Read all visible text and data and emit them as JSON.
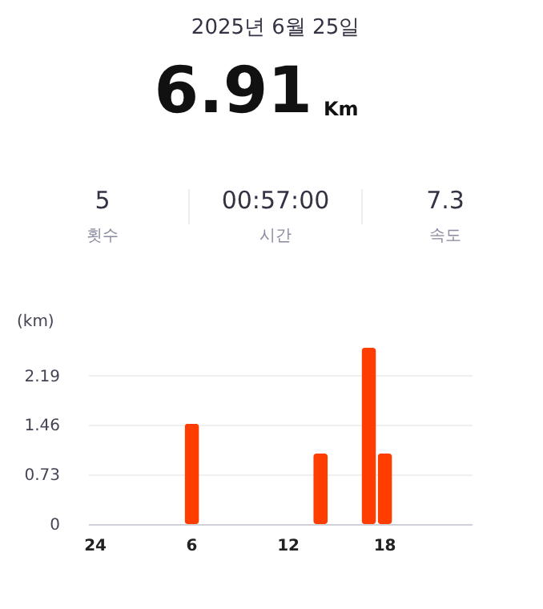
{
  "chart_data": {
    "type": "bar",
    "title": "2025년 6월 25일",
    "annotations": [
      "6.91",
      "Km",
      "5",
      "횟수",
      "00:57:00",
      "시간",
      "7.3",
      "속도"
    ],
    "ylabel": "(km)",
    "categories": [
      "24",
      null,
      null,
      null,
      null,
      null,
      "6",
      null,
      null,
      null,
      null,
      null,
      "12",
      null,
      null,
      null,
      null,
      null,
      "18",
      null,
      null,
      null,
      null,
      null
    ],
    "values": [
      null,
      null,
      null,
      null,
      null,
      null,
      1.48,
      null,
      null,
      null,
      null,
      null,
      null,
      null,
      1.04,
      null,
      null,
      2.6,
      1.04,
      null,
      null,
      null,
      null,
      null
    ],
    "color": "#ff3d00",
    "ylim": [
      0,
      2.6
    ],
    "yticks": [
      0,
      0.73,
      1.46,
      2.19
    ],
    "grid": "y"
  }
}
